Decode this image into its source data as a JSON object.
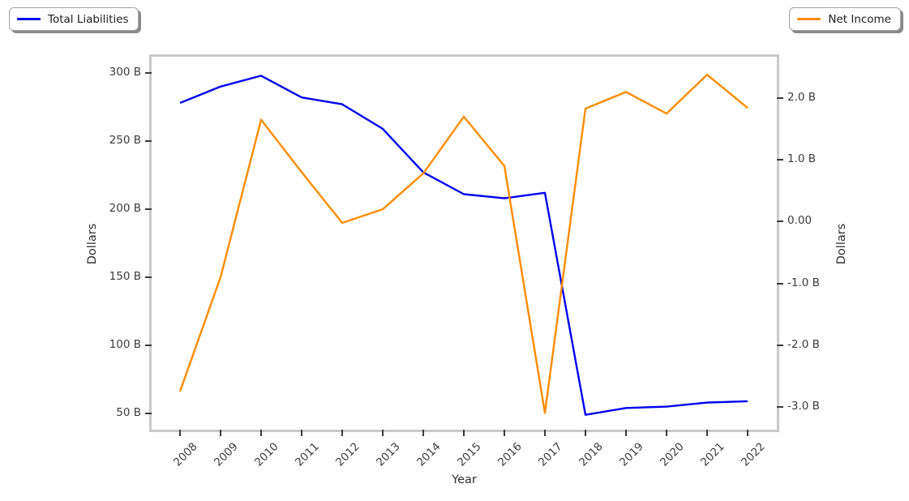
{
  "figure": {
    "background": "#ffffff"
  },
  "legend_left": {
    "label": "Total Liabilities",
    "color": "#0000ee"
  },
  "legend_right": {
    "label": "Net Income",
    "color": "#ff8c00"
  },
  "axes": {
    "xlabel": "Year",
    "ylabel_left": "Dollars",
    "ylabel_right": "Dollars"
  },
  "chart_data": {
    "type": "line",
    "title": "",
    "x": [
      2008,
      2009,
      2010,
      2011,
      2012,
      2013,
      2014,
      2015,
      2016,
      2017,
      2018,
      2019,
      2020,
      2021,
      2022
    ],
    "x_tick_labels": [
      "2008",
      "2009",
      "2010",
      "2011",
      "2012",
      "2013",
      "2014",
      "2015",
      "2016",
      "2017",
      "2018",
      "2019",
      "2020",
      "2021",
      "2022"
    ],
    "series": [
      {
        "name": "Total Liabilities",
        "axis": "left",
        "color": "#0000ee",
        "units": "billions of dollars",
        "values": [
          278,
          290,
          298,
          282,
          277,
          259,
          227,
          211,
          208,
          212,
          49,
          54,
          55,
          58,
          59
        ]
      },
      {
        "name": "Net Income",
        "axis": "right",
        "color": "#ff8c00",
        "units": "billions of dollars",
        "values": [
          -2.75,
          -0.9,
          1.65,
          0.8,
          -0.02,
          0.2,
          0.78,
          1.7,
          0.9,
          -3.1,
          1.83,
          2.1,
          1.75,
          2.38,
          1.84
        ]
      }
    ],
    "xlabel": "Year",
    "ylabel_left": "Dollars",
    "ylabel_right": "Dollars",
    "left_axis": {
      "tick_values": [
        300,
        250,
        200,
        150,
        100,
        50
      ],
      "tick_labels": [
        "300 B",
        "250 B",
        "200 B",
        "150 B",
        "100 B",
        "50 B"
      ],
      "lim": [
        38.1,
        311.9
      ]
    },
    "right_axis": {
      "tick_values": [
        2,
        1,
        0,
        -1,
        -2,
        -3
      ],
      "tick_labels": [
        "2.0 B",
        "1.0 B",
        "0.00",
        "-1.0 B",
        "-2.0 B",
        "-3.0 B"
      ],
      "lim": [
        -3.37,
        2.67
      ]
    },
    "xlim": [
      2007.3,
      2022.72
    ],
    "grid": false,
    "legend_positions": [
      "top-left",
      "top-right"
    ]
  }
}
